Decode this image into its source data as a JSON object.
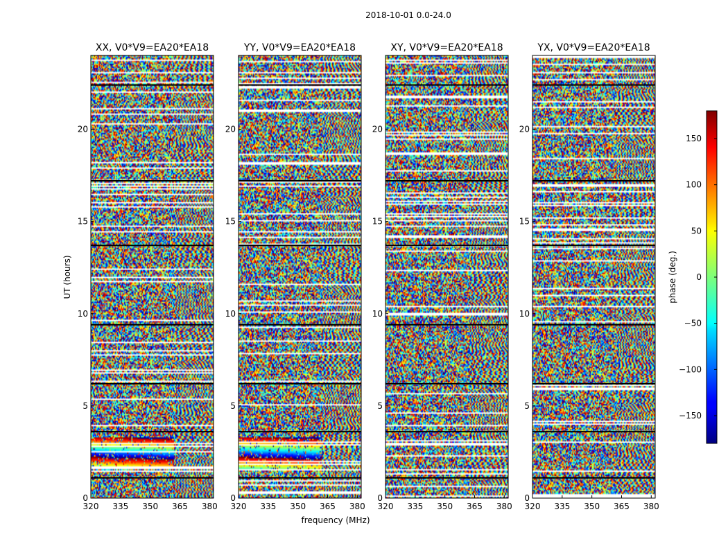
{
  "figure": {
    "suptitle": "2018-10-01 0.0-24.0"
  },
  "chart_data": {
    "type": "heatmap",
    "xlabel": "frequency (MHz)",
    "ylabel": "UT (hours)",
    "xlim": [
      320,
      382
    ],
    "ylim": [
      0,
      24
    ],
    "x_ticks": [
      320,
      335,
      350,
      365,
      380
    ],
    "y_ticks": [
      0,
      5,
      10,
      15,
      20
    ],
    "colorbar": {
      "label": "phase (deg.)",
      "range": [
        -180,
        180
      ],
      "ticks": [
        150,
        100,
        50,
        0,
        -50,
        -100,
        -150
      ],
      "tick_labels": [
        "150",
        "100",
        "50",
        "0",
        "−50",
        "−100",
        "−150"
      ],
      "colormap": "jet"
    },
    "panels": [
      {
        "title": "XX, V0*V9=EA20*EA18"
      },
      {
        "title": "YY, V0*V9=EA20*EA18"
      },
      {
        "title": "XY, V0*V9=EA20*EA18"
      },
      {
        "title": "YX, V0*V9=EA20*EA18"
      }
    ],
    "flagged_hours": [
      1.1,
      3.6,
      6.2,
      9.4,
      13.7,
      17.2,
      22.4
    ]
  }
}
